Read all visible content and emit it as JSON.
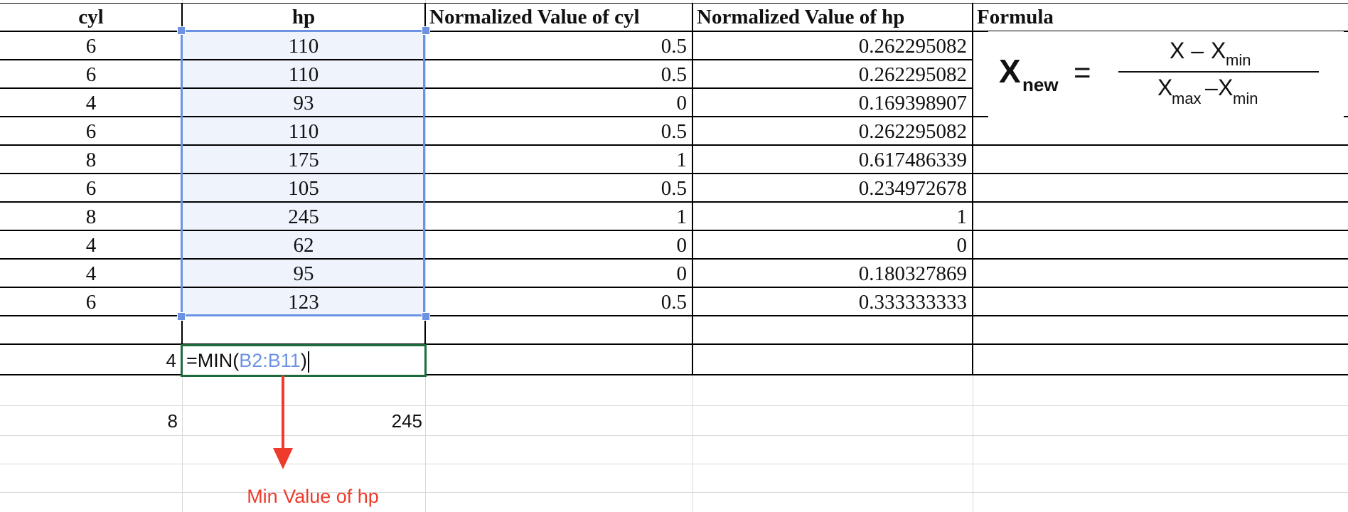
{
  "headers": {
    "cyl": "cyl",
    "hp": "hp",
    "norm_cyl": "Normalized Value of cyl",
    "norm_hp": "Normalized Value of hp",
    "formula": "Formula"
  },
  "rows": [
    {
      "cyl": "6",
      "hp": "110",
      "norm_cyl": "0.5",
      "norm_hp": "0.262295082"
    },
    {
      "cyl": "6",
      "hp": "110",
      "norm_cyl": "0.5",
      "norm_hp": "0.262295082"
    },
    {
      "cyl": "4",
      "hp": "93",
      "norm_cyl": "0",
      "norm_hp": "0.169398907"
    },
    {
      "cyl": "6",
      "hp": "110",
      "norm_cyl": "0.5",
      "norm_hp": "0.262295082"
    },
    {
      "cyl": "8",
      "hp": "175",
      "norm_cyl": "1",
      "norm_hp": "0.617486339"
    },
    {
      "cyl": "6",
      "hp": "105",
      "norm_cyl": "0.5",
      "norm_hp": "0.234972678"
    },
    {
      "cyl": "8",
      "hp": "245",
      "norm_cyl": "1",
      "norm_hp": "1"
    },
    {
      "cyl": "4",
      "hp": "62",
      "norm_cyl": "0",
      "norm_hp": "0"
    },
    {
      "cyl": "4",
      "hp": "95",
      "norm_cyl": "0",
      "norm_hp": "0.180327869"
    },
    {
      "cyl": "6",
      "hp": "123",
      "norm_cyl": "0.5",
      "norm_hp": "0.333333333"
    }
  ],
  "min_row": {
    "cyl_min": "4",
    "formula_prefix": "=MIN(",
    "formula_range": "B2:B11",
    "formula_suffix": ")"
  },
  "max_row": {
    "cyl_max": "8",
    "hp_max": "245"
  },
  "formula_image": {
    "x": "X",
    "new": "new",
    "equals": "=",
    "numerator_x": "X –",
    "x_min": "X",
    "min": "min",
    "x_max": "X",
    "max": "max",
    "minus": "–"
  },
  "annotation": {
    "label": "Min Value of hp",
    "color": "#ef3b2c"
  },
  "colors": {
    "selection_border": "#6c93e3",
    "active_cell_border": "#1e6c3e"
  }
}
